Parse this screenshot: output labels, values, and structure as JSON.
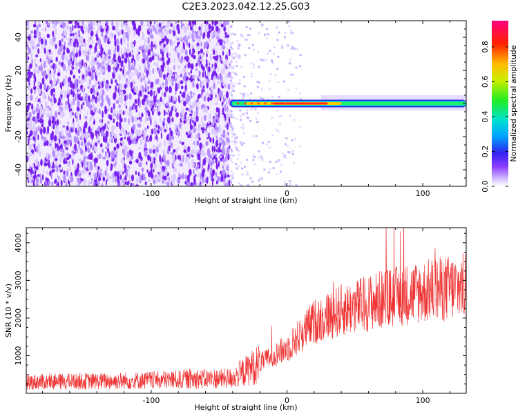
{
  "title": "C2E3.2023.042.12.25.G03",
  "chart_data": [
    {
      "type": "heatmap",
      "xlabel": "Height of straight line (km)",
      "ylabel": "Frequency (Hz)",
      "xlim": [
        -192,
        132
      ],
      "ylim": [
        -50,
        50
      ],
      "x_ticks": [
        -100,
        0,
        100
      ],
      "y_ticks": [
        -40,
        -20,
        0,
        20,
        40
      ],
      "colorbar": {
        "label": "Normalized spectral amplitude",
        "range": [
          0,
          0.95
        ],
        "ticks": [
          0.0,
          0.2,
          0.4,
          0.6,
          0.8
        ]
      },
      "signal_band": {
        "x_start": -42,
        "x_end": 132,
        "frequency_center": 0,
        "peak_x_range": [
          -10,
          30
        ]
      },
      "noise_region": {
        "x_start": -192,
        "x_end": -42,
        "frequency_range": [
          -50,
          50
        ]
      }
    },
    {
      "type": "line",
      "xlabel": "Height of straight line (km)",
      "ylabel": "SNR (10 * v/v)",
      "xlim": [
        -192,
        132
      ],
      "ylim": [
        0,
        4400
      ],
      "x_ticks": [
        -100,
        0,
        100
      ],
      "y_ticks": [
        1000,
        2000,
        3000,
        4000
      ],
      "color": "#ee3333",
      "series_trend": [
        {
          "x": -192,
          "y": 300
        },
        {
          "x": -120,
          "y": 330
        },
        {
          "x": -40,
          "y": 400
        },
        {
          "x": -25,
          "y": 700
        },
        {
          "x": 0,
          "y": 1200
        },
        {
          "x": 20,
          "y": 1900
        },
        {
          "x": 40,
          "y": 2200
        },
        {
          "x": 70,
          "y": 2500
        },
        {
          "x": 100,
          "y": 2700
        },
        {
          "x": 132,
          "y": 2850
        }
      ]
    }
  ]
}
